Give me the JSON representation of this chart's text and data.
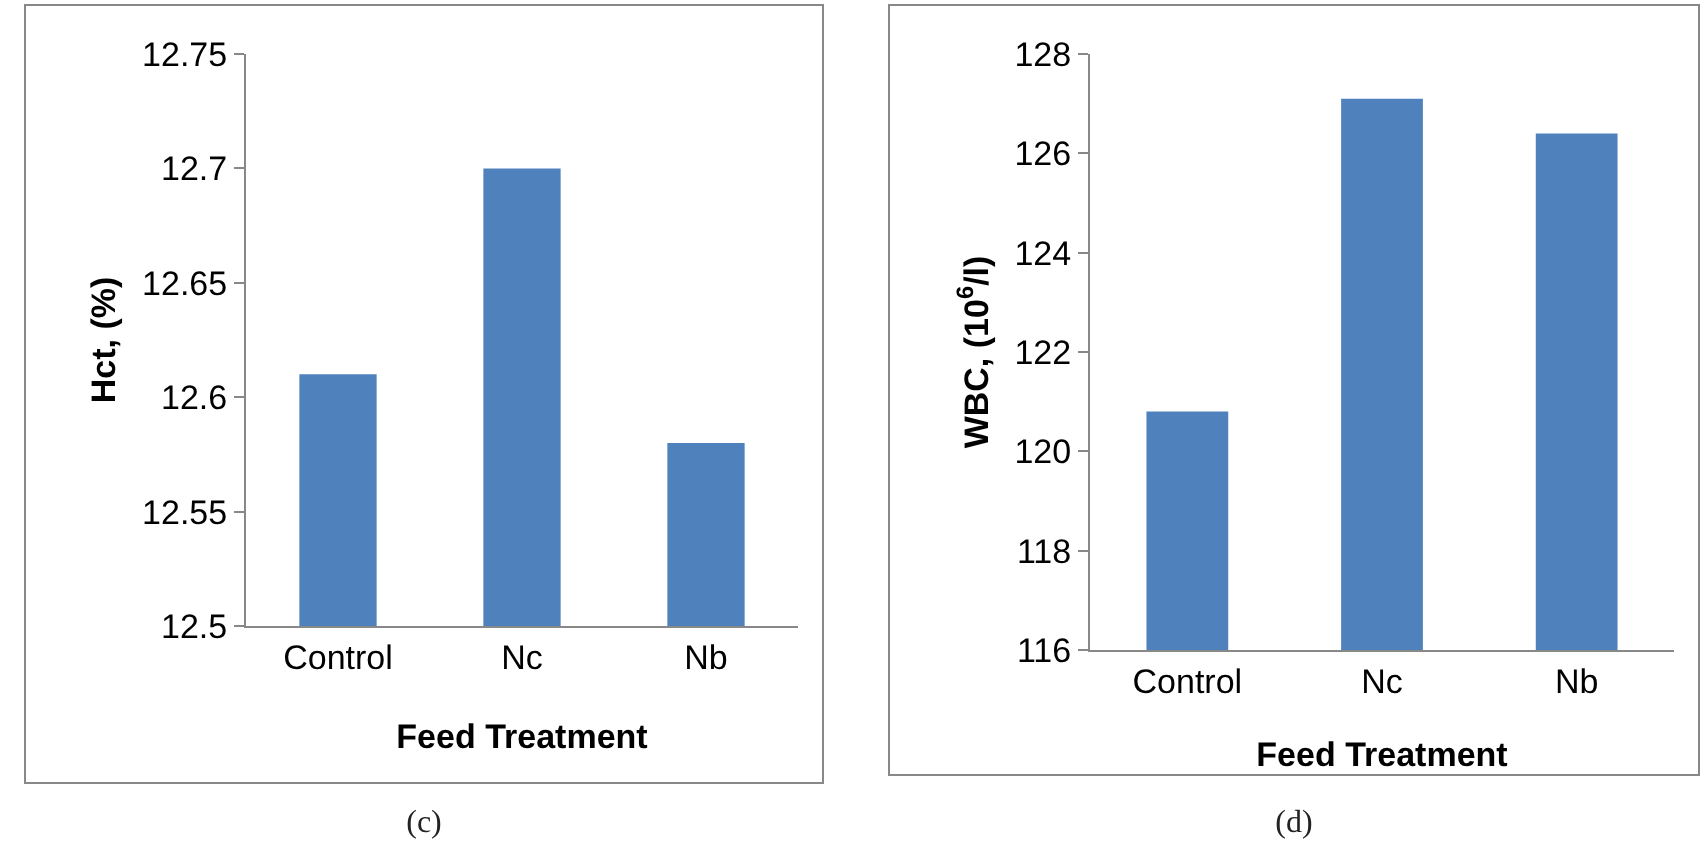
{
  "chart_data": [
    {
      "type": "bar",
      "categories": [
        "Control",
        "Nc",
        "Nb"
      ],
      "values": [
        12.61,
        12.7,
        12.58
      ],
      "color": "#4f81bd",
      "xlabel": "Feed Treatment",
      "ylabel": "Hct, (%)",
      "ylim": [
        12.5,
        12.75
      ],
      "yticks": [
        12.5,
        12.55,
        12.6,
        12.65,
        12.7,
        12.75
      ],
      "annotations": [
        "(c)"
      ]
    },
    {
      "type": "bar",
      "categories": [
        "Control",
        "Nc",
        "Nb"
      ],
      "values": [
        120.8,
        127.1,
        126.4
      ],
      "color": "#4f81bd",
      "xlabel": "Feed Treatment",
      "ylabel": "WBC, (10$^{6}$/l)",
      "ylim": [
        116,
        128
      ],
      "yticks": [
        116,
        118,
        120,
        122,
        124,
        126,
        128
      ],
      "annotations": [
        "(d)"
      ]
    }
  ]
}
